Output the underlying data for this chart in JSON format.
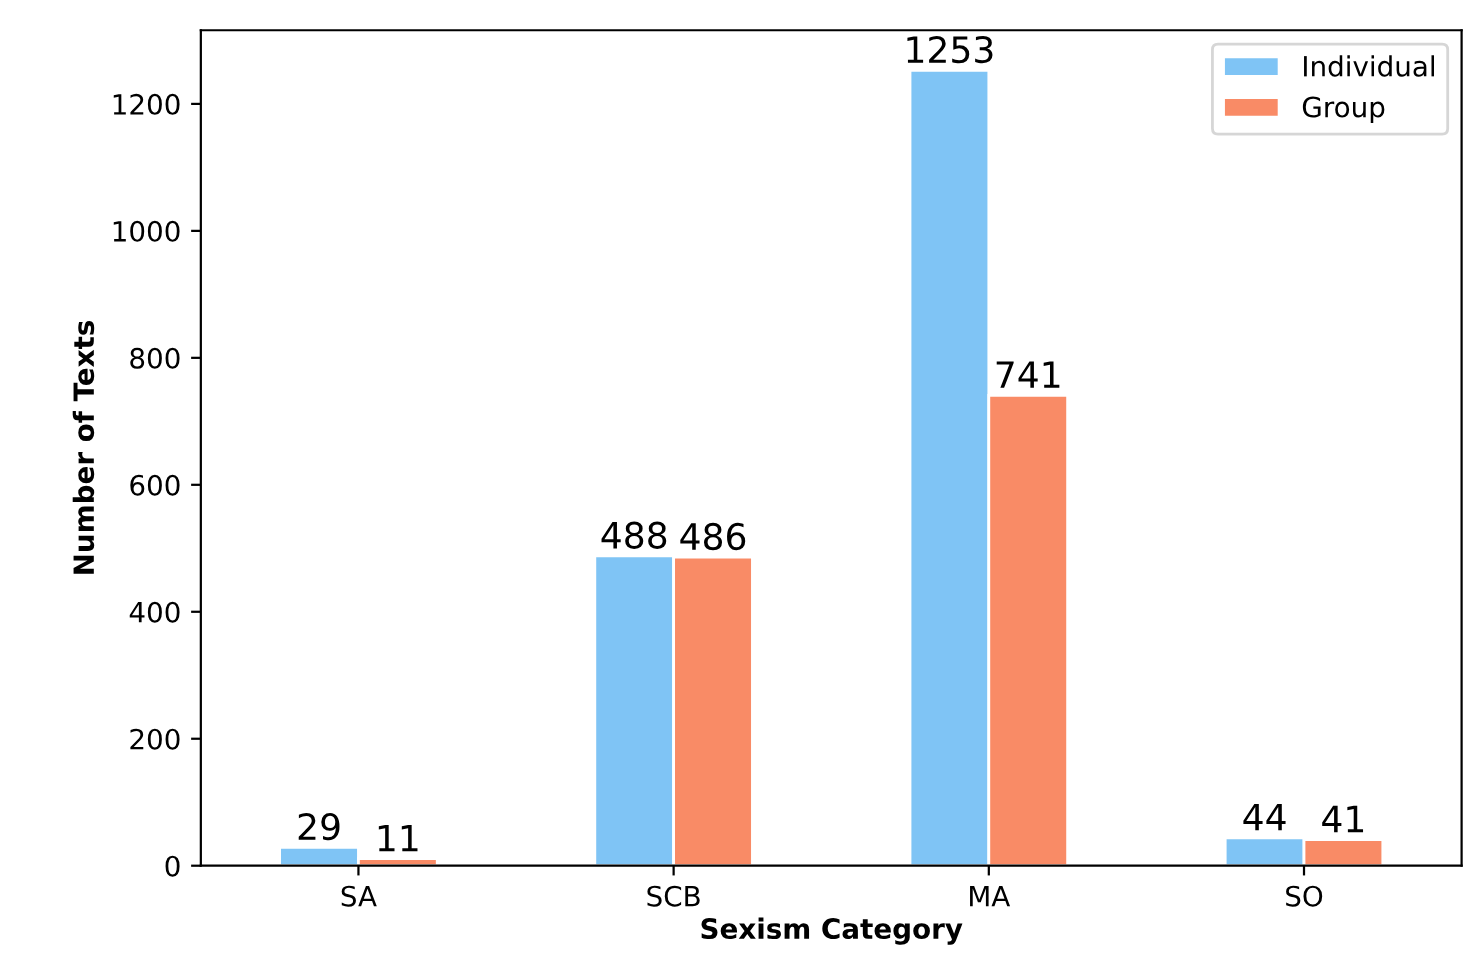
{
  "chart_data": {
    "type": "bar",
    "xlabel": "Sexism Category",
    "ylabel": "Number of Texts",
    "categories": [
      "SA",
      "SCB",
      "MA",
      "SO"
    ],
    "series": [
      {
        "name": "Individual",
        "color": "#7fc4f5",
        "values": [
          29,
          488,
          1253,
          44
        ]
      },
      {
        "name": "Group",
        "color": "#f98b66",
        "values": [
          11,
          486,
          741,
          41
        ]
      }
    ],
    "ylim": [
      0,
      1316
    ],
    "yticks": [
      0,
      200,
      400,
      600,
      800,
      1000,
      1200
    ],
    "data_labels": true,
    "legend": "top right",
    "grid": false
  }
}
